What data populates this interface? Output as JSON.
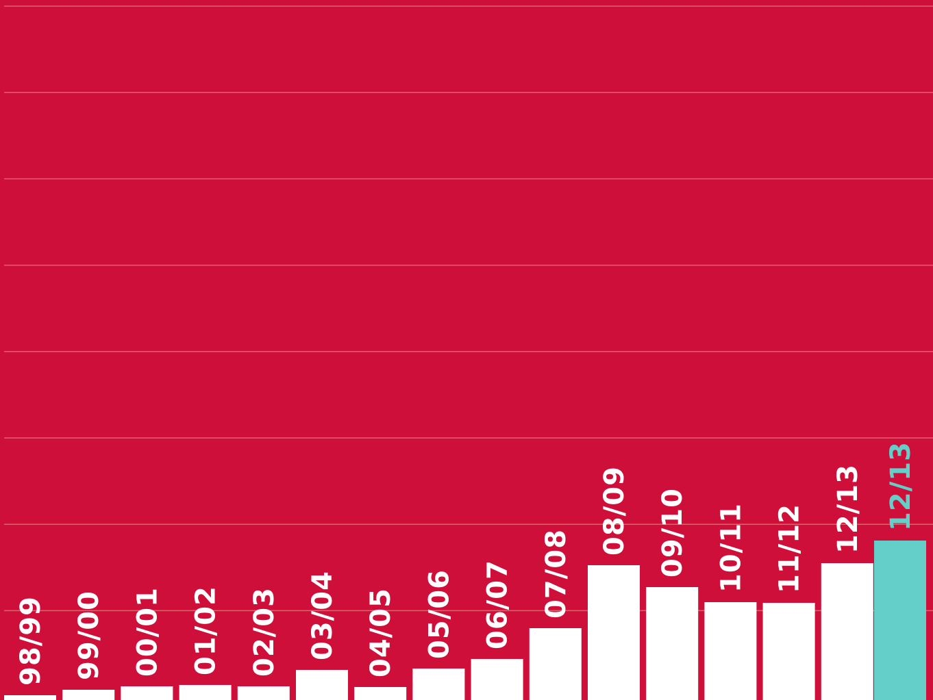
{
  "chart_data": {
    "type": "bar",
    "categories": [
      "98/99",
      "99/00",
      "00/01",
      "01/02",
      "02/03",
      "03/04",
      "04/05",
      "05/06",
      "06/07",
      "07/08",
      "08/09",
      "09/10",
      "10/11",
      "11/12",
      "12/13",
      "12/13"
    ],
    "values": [
      7,
      15,
      20,
      22,
      20,
      44,
      19,
      46,
      60,
      105,
      197,
      165,
      143,
      142,
      200,
      233
    ],
    "highlight_index": 15,
    "ylim": [
      0,
      1015
    ],
    "grid": true,
    "colors": {
      "background": "#CE0F3A",
      "bar": "#FFFFFF",
      "highlight": "#64CFC9",
      "grid": "#E4616F",
      "label": "#FFFFFF"
    }
  }
}
